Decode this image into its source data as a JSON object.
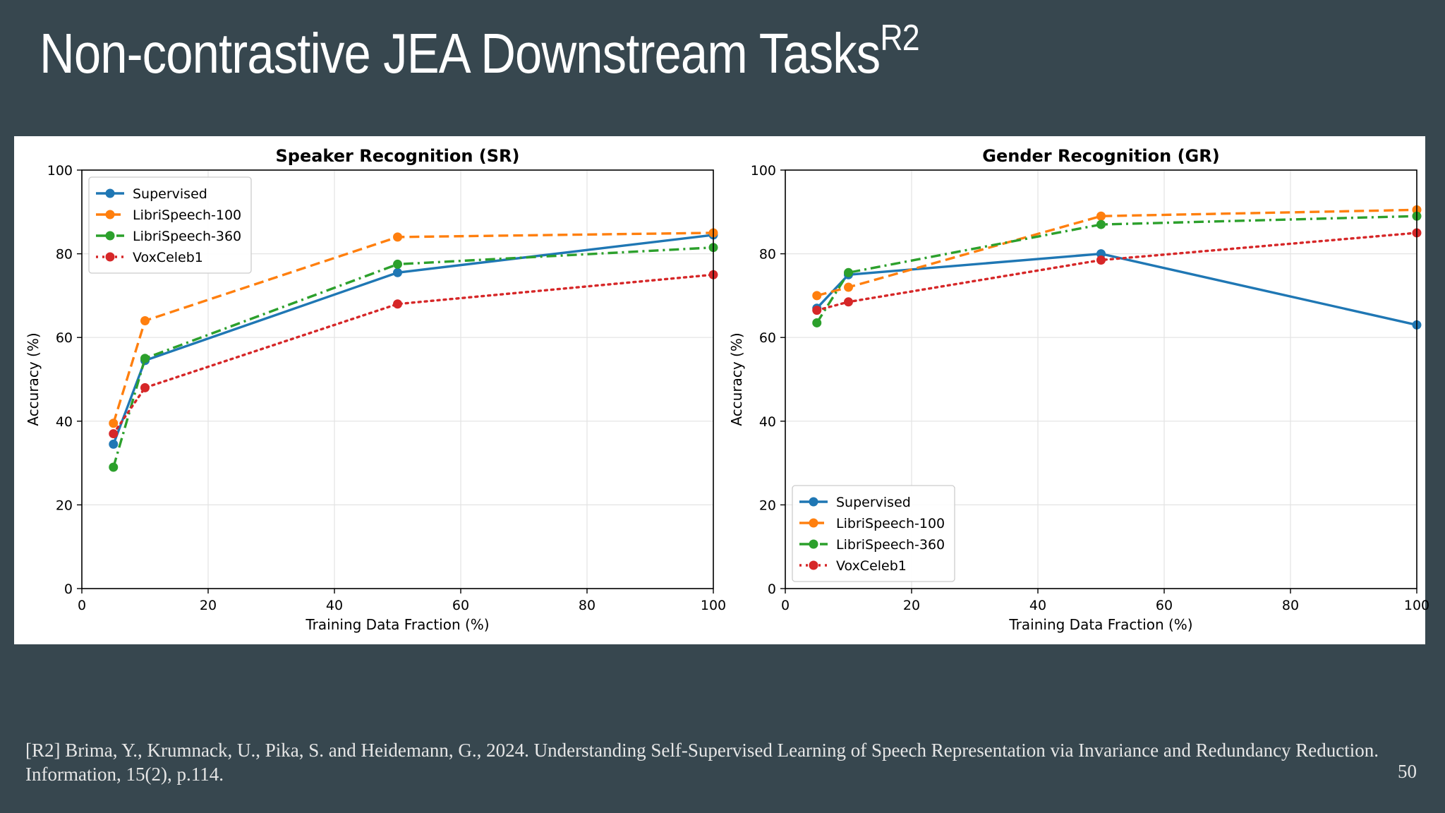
{
  "slide": {
    "title": "Non-contrastive JEA Downstream Tasks",
    "title_sup": "R2",
    "citation": "[R2] Brima, Y., Krumnack, U., Pika, S. and Heidemann, G., 2024. Understanding Self-Supervised Learning of Speech Representation via Invariance and Redundancy Reduction. Information, 15(2), p.114.",
    "page_number": "50"
  },
  "colors": {
    "background": "#37474f",
    "Supervised": "#1f77b4",
    "LibriSpeech-100": "#ff7f0e",
    "LibriSpeech-360": "#2ca02c",
    "VoxCeleb1": "#d62728"
  },
  "chart_data": [
    {
      "type": "line",
      "title": "Speaker Recognition (SR)",
      "xlabel": "Training Data Fraction (%)",
      "ylabel": "Accuracy (%)",
      "xlim": [
        0,
        100
      ],
      "ylim": [
        0,
        100
      ],
      "xticks": [
        0,
        20,
        40,
        60,
        80,
        100
      ],
      "yticks": [
        0,
        20,
        40,
        60,
        80,
        100
      ],
      "grid": true,
      "legend_position": "top-left",
      "x": [
        5,
        10,
        50,
        100
      ],
      "series": [
        {
          "name": "Supervised",
          "style": "solid",
          "values": [
            34.5,
            54.5,
            75.5,
            84.5
          ]
        },
        {
          "name": "LibriSpeech-100",
          "style": "dashed",
          "values": [
            39.5,
            64,
            84,
            85
          ]
        },
        {
          "name": "LibriSpeech-360",
          "style": "dashdot",
          "values": [
            29,
            55,
            77.5,
            81.5
          ]
        },
        {
          "name": "VoxCeleb1",
          "style": "dotted",
          "values": [
            37,
            48,
            68,
            75
          ]
        }
      ]
    },
    {
      "type": "line",
      "title": "Gender Recognition (GR)",
      "xlabel": "Training Data Fraction (%)",
      "ylabel": "Accuracy (%)",
      "xlim": [
        0,
        100
      ],
      "ylim": [
        0,
        100
      ],
      "xticks": [
        0,
        20,
        40,
        60,
        80,
        100
      ],
      "yticks": [
        0,
        20,
        40,
        60,
        80,
        100
      ],
      "grid": true,
      "legend_position": "bottom-left",
      "x": [
        5,
        10,
        50,
        100
      ],
      "series": [
        {
          "name": "Supervised",
          "style": "solid",
          "values": [
            67,
            75,
            80,
            63
          ]
        },
        {
          "name": "LibriSpeech-100",
          "style": "dashed",
          "values": [
            70,
            72,
            89,
            90.5
          ]
        },
        {
          "name": "LibriSpeech-360",
          "style": "dashdot",
          "values": [
            63.5,
            75.5,
            87,
            89
          ]
        },
        {
          "name": "VoxCeleb1",
          "style": "dotted",
          "values": [
            66.5,
            68.5,
            78.5,
            85
          ]
        }
      ]
    }
  ]
}
